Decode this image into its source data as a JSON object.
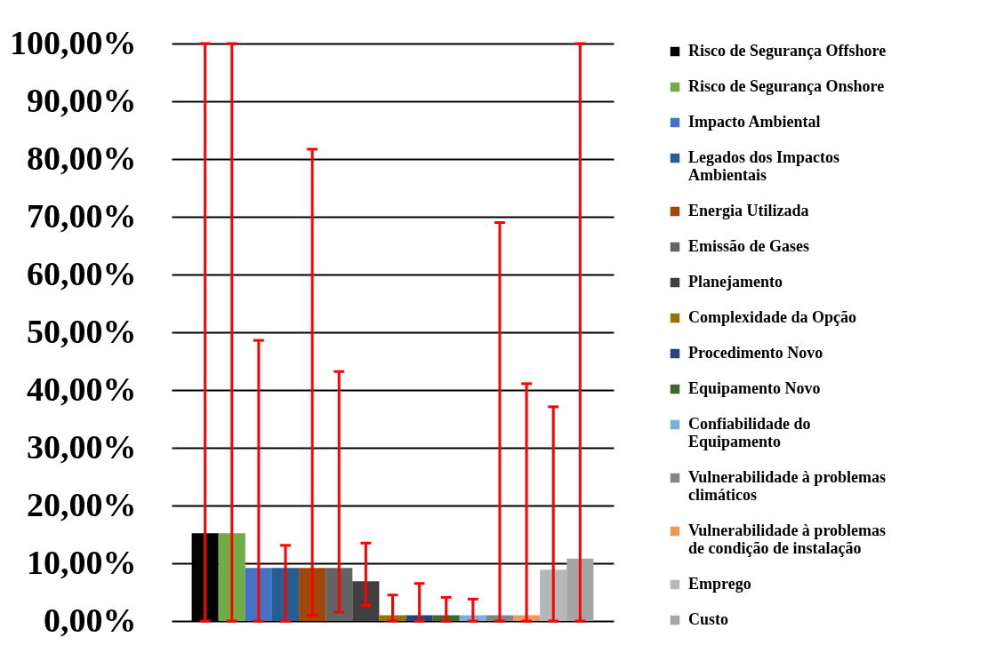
{
  "chart_data": {
    "type": "bar",
    "categories": [
      null
    ],
    "ylim": [
      0,
      100
    ],
    "yticks": [
      {
        "value": 0,
        "label": "0,00%"
      },
      {
        "value": 10,
        "label": "10,00%"
      },
      {
        "value": 20,
        "label": "20,00%"
      },
      {
        "value": 30,
        "label": "30,00%"
      },
      {
        "value": 40,
        "label": "40,00%"
      },
      {
        "value": 50,
        "label": "50,00%"
      },
      {
        "value": 60,
        "label": "60,00%"
      },
      {
        "value": 70,
        "label": "70,00%"
      },
      {
        "value": 80,
        "label": "80,00%"
      },
      {
        "value": 90,
        "label": "90,00%"
      },
      {
        "value": 100,
        "label": "100,00%"
      }
    ],
    "grid": "y",
    "legend": "right",
    "tick_labels": "y",
    "series": [
      {
        "name": "Risco de Segurança Offshore",
        "color": "#000000",
        "values": [
          15.2
        ],
        "errors": [
          [
            0,
            100
          ]
        ]
      },
      {
        "name": "Risco de Segurança Onshore",
        "color": "#70ad47",
        "values": [
          15.2
        ],
        "errors": [
          [
            0,
            100
          ]
        ]
      },
      {
        "name": "Impacto Ambiental",
        "color": "#4472c4",
        "values": [
          9.2
        ],
        "errors": [
          [
            0,
            48.6
          ]
        ]
      },
      {
        "name": "Legados dos Impactos Ambientais",
        "color": "#255e91",
        "values": [
          9.2
        ],
        "errors": [
          [
            0,
            13.1
          ]
        ]
      },
      {
        "name": "Energia Utilizada",
        "color": "#9e480e",
        "values": [
          9.2
        ],
        "errors": [
          [
            1,
            81.7
          ]
        ]
      },
      {
        "name": "Emissão de Gases",
        "color": "#636363",
        "values": [
          9.2
        ],
        "errors": [
          [
            1.5,
            43.2
          ]
        ]
      },
      {
        "name": "Planejamento",
        "color": "#404040",
        "values": [
          6.9
        ],
        "errors": [
          [
            2.7,
            13.5
          ]
        ]
      },
      {
        "name": "Complexidade da Opção",
        "color": "#997300",
        "values": [
          1
        ],
        "errors": [
          [
            0,
            4.5
          ]
        ]
      },
      {
        "name": "Procedimento Novo",
        "color": "#264478",
        "values": [
          1
        ],
        "errors": [
          [
            0,
            6.5
          ]
        ]
      },
      {
        "name": "Equipamento Novo",
        "color": "#43682b",
        "values": [
          1
        ],
        "errors": [
          [
            0,
            4.1
          ]
        ]
      },
      {
        "name": "Confiabilidade do Equipamento",
        "color": "#7cafdd",
        "values": [
          1
        ],
        "errors": [
          [
            0,
            3.8
          ]
        ]
      },
      {
        "name": "Vulnerabilidade à problemas climáticos",
        "color": "#848484",
        "values": [
          1
        ],
        "errors": [
          [
            0,
            69
          ]
        ]
      },
      {
        "name": "Vulnerabilidade à problemas de condição de instalação",
        "color": "#f1975a",
        "values": [
          1
        ],
        "errors": [
          [
            0,
            41.1
          ]
        ]
      },
      {
        "name": "Emprego",
        "color": "#b7b7b7",
        "values": [
          8.9
        ],
        "errors": [
          [
            0,
            37.1
          ]
        ]
      },
      {
        "name": "Custo",
        "color": "#a5a5a5",
        "values": [
          10.8
        ],
        "errors": [
          [
            0,
            100
          ]
        ]
      }
    ]
  }
}
